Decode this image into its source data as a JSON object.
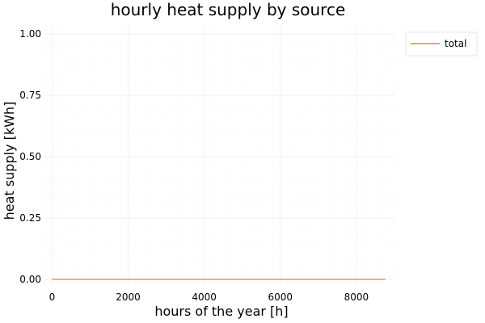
{
  "chart_data": {
    "type": "line",
    "title": "hourly heat supply by source",
    "xlabel": "hours of the year [h]",
    "ylabel": "heat supply [kWh]",
    "xlim": [
      -200,
      9000
    ],
    "ylim": [
      -0.02,
      1.03
    ],
    "xticks": [
      0,
      2000,
      4000,
      6000,
      8000
    ],
    "xtick_labels": [
      "0",
      "2000",
      "4000",
      "6000",
      "8000"
    ],
    "yticks": [
      0,
      0.25,
      0.5,
      0.75,
      1.0
    ],
    "ytick_labels": [
      "0.00",
      "0.25",
      "0.50",
      "0.75",
      "1.00"
    ],
    "grid": true,
    "legend_position": "outside-top-right",
    "series": [
      {
        "name": "total",
        "color": "#e26f0a",
        "x": [
          0,
          8760
        ],
        "y": [
          0,
          0
        ]
      }
    ]
  }
}
